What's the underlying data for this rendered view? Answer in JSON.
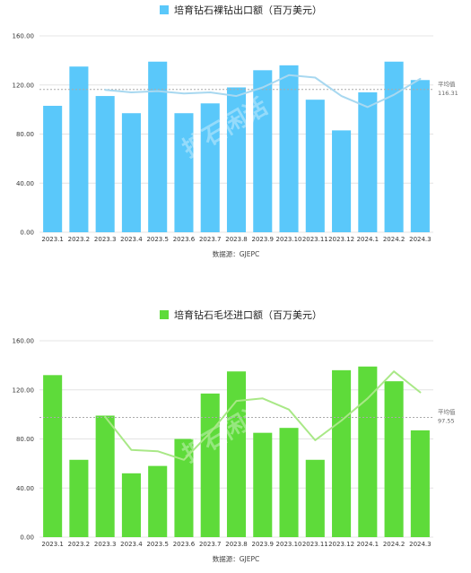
{
  "charts": [
    {
      "title": "培育钻石裸钻出口额（百万美元）",
      "source": "数据源：GJEPC",
      "avg_label": "平均值",
      "avg_value_label": "116.31",
      "watermark": "扩石闲话",
      "colors": {
        "bar": "#5AC8FA",
        "trend": "#A8D8F0",
        "avg": "#AAAAAA"
      }
    },
    {
      "title": "培育钻石毛坯进口额（百万美元）",
      "source": "数据源：GJEPC",
      "avg_label": "平均值",
      "avg_value_label": "97.55",
      "watermark": "扩石闲话",
      "colors": {
        "bar": "#5EDB3A",
        "trend": "#A9E887",
        "avg": "#AAAAAA"
      }
    }
  ],
  "chart_data": [
    {
      "type": "bar",
      "title": "培育钻石裸钻出口额（百万美元）",
      "categories": [
        "2023.1",
        "2023.2",
        "2023.3",
        "2023.4",
        "2023.5",
        "2023.6",
        "2023.7",
        "2023.8",
        "2023.9",
        "2023.10",
        "2023.11",
        "2023.12",
        "2024.1",
        "2024.2",
        "2024.3"
      ],
      "series": [
        {
          "name": "培育钻石裸钻出口额（百万美元）",
          "values": [
            103,
            135,
            111,
            97,
            139,
            97,
            105,
            118,
            132,
            136,
            108,
            83,
            114,
            139,
            124
          ]
        }
      ],
      "trend": [
        null,
        null,
        116,
        114,
        115,
        113,
        114,
        111,
        118,
        128,
        126,
        111,
        102,
        112,
        125
      ],
      "average": 116.31,
      "ylim": [
        0,
        160
      ],
      "yticks": [
        "0.00",
        "40.00",
        "80.00",
        "120.00",
        "160.00"
      ],
      "grid": true,
      "xlabel": "",
      "ylabel": ""
    },
    {
      "type": "bar",
      "title": "培育钻石毛坯进口额（百万美元）",
      "categories": [
        "2023.1",
        "2023.2",
        "2023.3",
        "2023.4",
        "2023.5",
        "2023.6",
        "2023.7",
        "2023.8",
        "2023.9",
        "2023.10",
        "2023.11",
        "2023.12",
        "2024.1",
        "2024.2",
        "2024.3"
      ],
      "series": [
        {
          "name": "培育钻石毛坯进口额（百万美元）",
          "values": [
            132,
            63,
            99,
            52,
            58,
            80,
            117,
            135,
            85,
            89,
            63,
            136,
            139,
            127,
            87
          ]
        }
      ],
      "trend": [
        null,
        null,
        98,
        71,
        70,
        63,
        85,
        111,
        113,
        104,
        79,
        95,
        113,
        135,
        118
      ],
      "average": 97.55,
      "ylim": [
        0,
        160
      ],
      "yticks": [
        "0.00",
        "40.00",
        "80.00",
        "120.00",
        "160.00"
      ],
      "grid": true,
      "xlabel": "",
      "ylabel": ""
    }
  ]
}
